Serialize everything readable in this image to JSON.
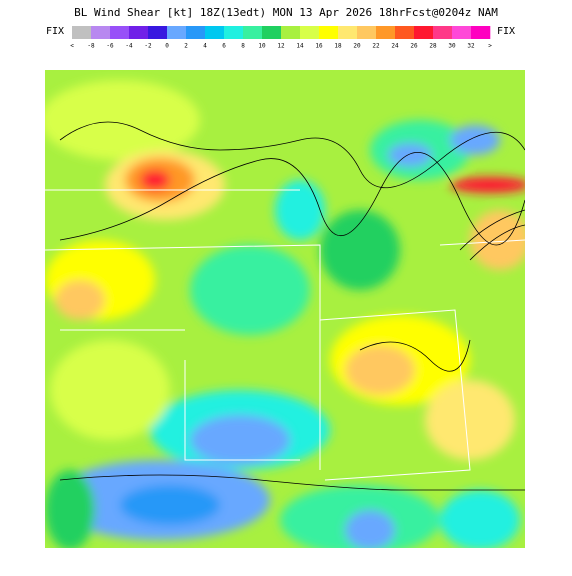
{
  "header": {
    "title": "BL Wind Shear [kt] 18Z(13edt) MON 13 Apr 2026 18hrFcst@0204z NAM",
    "fix_left": "FIX",
    "fix_right": "FIX"
  },
  "colorbar": {
    "colors": [
      "#c0c0c0",
      "#b888f0",
      "#9850f8",
      "#7020e8",
      "#3818e0",
      "#68a8ff",
      "#2898f8",
      "#00c8f0",
      "#20f0e0",
      "#38f0a0",
      "#20d060",
      "#a8f040",
      "#d8ff48",
      "#ffff00",
      "#ffe870",
      "#ffc860",
      "#ff9828",
      "#ff5820",
      "#ff1830",
      "#ff3888",
      "#ff48d8",
      "#ff00c0"
    ],
    "labels": [
      "<",
      "-8",
      "-6",
      "-4",
      "-2",
      "0",
      "2",
      "4",
      "6",
      "8",
      "10",
      "12",
      "14",
      "16",
      "18",
      "20",
      "22",
      "24",
      "26",
      "28",
      "30",
      "32",
      ">"
    ]
  }
}
